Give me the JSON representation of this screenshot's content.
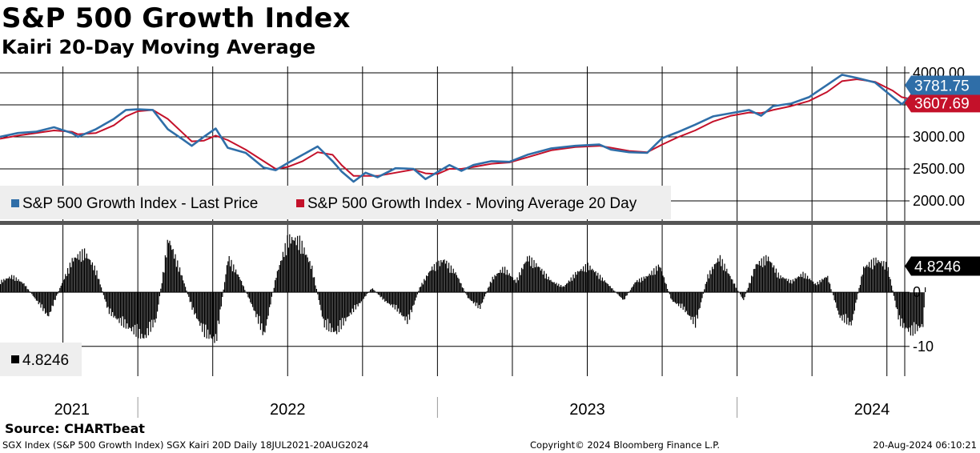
{
  "header": {
    "title": "S&P 500 Growth Index",
    "subtitle": "Kairi 20-Day Moving Average"
  },
  "footer": {
    "source": "Source: CHARTbeat",
    "description": "SGX Index (S&P 500 Growth Index) SGX Kairi 20D  Daily 18JUL2021-20AUG2024",
    "copyright": "Copyright© 2024 Bloomberg Finance L.P.",
    "timestamp": "20-Aug-2024 06:10:21"
  },
  "colors": {
    "price": "#2f6ea8",
    "moving_average": "#c4112a",
    "kairi": "#000000",
    "grid": "#000000",
    "legend_bg": "#eeeeee"
  },
  "chart_data": [
    {
      "type": "line",
      "title": "S&P 500 Growth Index",
      "ylim": [
        1700,
        4100
      ],
      "yticks": [
        2000,
        2500,
        3000,
        3500,
        4000
      ],
      "ytick_labels": [
        "2000.00",
        "2500.00",
        "3000.00",
        "",
        "4000.00"
      ],
      "last_value_labels": {
        "price": "3781.75",
        "moving_average": "3607.69"
      },
      "legend": [
        "S&P 500 Growth Index - Last Price",
        "S&P 500 Growth Index - Moving Average 20 Day"
      ],
      "x": [
        2021.54,
        2021.6,
        2021.66,
        2021.72,
        2021.78,
        2021.8,
        2021.86,
        2021.92,
        2021.96,
        2022.0,
        2022.05,
        2022.1,
        2022.15,
        2022.18,
        2022.22,
        2022.26,
        2022.3,
        2022.36,
        2022.42,
        2022.46,
        2022.5,
        2022.55,
        2022.6,
        2022.65,
        2022.68,
        2022.72,
        2022.76,
        2022.8,
        2022.86,
        2022.92,
        2022.96,
        2023.0,
        2023.04,
        2023.08,
        2023.12,
        2023.18,
        2023.24,
        2023.3,
        2023.38,
        2023.46,
        2023.54,
        2023.58,
        2023.64,
        2023.7,
        2023.75,
        2023.8,
        2023.86,
        2023.92,
        2023.98,
        2024.04,
        2024.08,
        2024.12,
        2024.18,
        2024.24,
        2024.3,
        2024.35,
        2024.4,
        2024.46,
        2024.52,
        2024.55,
        2024.58,
        2024.61,
        2024.63
      ],
      "series": [
        {
          "name": "S&P 500 Growth Index - Last Price",
          "values": [
            3000,
            3060,
            3080,
            3150,
            3060,
            3000,
            3120,
            3280,
            3420,
            3430,
            3420,
            3120,
            2960,
            2860,
            3000,
            3130,
            2830,
            2750,
            2520,
            2480,
            2590,
            2720,
            2850,
            2620,
            2460,
            2300,
            2440,
            2370,
            2510,
            2500,
            2340,
            2450,
            2560,
            2470,
            2560,
            2620,
            2610,
            2720,
            2820,
            2860,
            2880,
            2800,
            2760,
            2750,
            2980,
            3070,
            3190,
            3320,
            3370,
            3420,
            3330,
            3480,
            3520,
            3620,
            3810,
            3970,
            3920,
            3850,
            3620,
            3510,
            3640,
            3700,
            3781.75
          ]
        },
        {
          "name": "S&P 500 Growth Index - Moving Average 20 Day",
          "values": [
            2970,
            3020,
            3060,
            3100,
            3080,
            3040,
            3060,
            3180,
            3320,
            3400,
            3420,
            3280,
            3060,
            2930,
            2940,
            3020,
            2950,
            2800,
            2620,
            2500,
            2530,
            2620,
            2760,
            2720,
            2560,
            2390,
            2390,
            2390,
            2440,
            2490,
            2430,
            2420,
            2500,
            2500,
            2530,
            2580,
            2600,
            2680,
            2790,
            2840,
            2860,
            2830,
            2780,
            2760,
            2880,
            2990,
            3100,
            3240,
            3330,
            3380,
            3370,
            3420,
            3480,
            3560,
            3700,
            3870,
            3900,
            3860,
            3720,
            3620,
            3590,
            3600,
            3607.69
          ]
        }
      ]
    },
    {
      "type": "bar",
      "title": "Kairi 20-Day Moving Average",
      "ylim": [
        -15.5,
        12
      ],
      "yticks": [
        0,
        -10
      ],
      "ytick_labels": [
        "0",
        "-10"
      ],
      "last_value_label": "4.8246",
      "legend": [
        "4.8246"
      ],
      "x": [
        2021.54,
        2021.58,
        2021.62,
        2021.66,
        2021.7,
        2021.74,
        2021.78,
        2021.82,
        2021.86,
        2021.9,
        2021.94,
        2021.98,
        2022.02,
        2022.06,
        2022.1,
        2022.14,
        2022.18,
        2022.22,
        2022.26,
        2022.3,
        2022.34,
        2022.38,
        2022.42,
        2022.46,
        2022.5,
        2022.54,
        2022.58,
        2022.62,
        2022.66,
        2022.7,
        2022.74,
        2022.78,
        2022.82,
        2022.86,
        2022.9,
        2022.94,
        2022.98,
        2023.02,
        2023.06,
        2023.1,
        2023.14,
        2023.18,
        2023.22,
        2023.26,
        2023.3,
        2023.34,
        2023.38,
        2023.42,
        2023.46,
        2023.5,
        2023.54,
        2023.58,
        2023.62,
        2023.66,
        2023.7,
        2023.74,
        2023.78,
        2023.82,
        2023.86,
        2023.9,
        2023.94,
        2023.98,
        2024.02,
        2024.06,
        2024.1,
        2024.14,
        2024.18,
        2024.22,
        2024.26,
        2024.3,
        2024.34,
        2024.38,
        2024.42,
        2024.46,
        2024.5,
        2024.54,
        2024.58,
        2024.62,
        2024.63
      ],
      "values": [
        2.0,
        3.0,
        1.5,
        -1.5,
        -4.5,
        1.0,
        6.0,
        7.5,
        4.0,
        -3.5,
        -5.5,
        -7.0,
        -8.5,
        -5.0,
        10.0,
        4.0,
        -3.0,
        -7.5,
        -9.0,
        6.5,
        2.5,
        -2.5,
        -8.0,
        3.0,
        10.0,
        9.5,
        4.5,
        -6.0,
        -7.5,
        -4.5,
        -2.0,
        0.8,
        -1.5,
        -3.0,
        -5.5,
        1.0,
        4.5,
        6.0,
        3.5,
        -1.0,
        -3.0,
        2.5,
        4.5,
        2.0,
        6.5,
        4.5,
        2.0,
        1.0,
        3.5,
        5.0,
        3.0,
        0.8,
        -1.5,
        2.0,
        3.0,
        5.0,
        -1.5,
        -3.0,
        -6.0,
        3.0,
        6.5,
        2.5,
        -1.5,
        5.0,
        6.5,
        3.0,
        2.0,
        3.5,
        1.5,
        3.0,
        -4.5,
        -6.0,
        4.5,
        6.0,
        5.0,
        -5.5,
        -7.5,
        -6.0,
        4.8246
      ]
    },
    {
      "type": "axis",
      "years": [
        "2021",
        "2022",
        "2023",
        "2024"
      ]
    }
  ]
}
